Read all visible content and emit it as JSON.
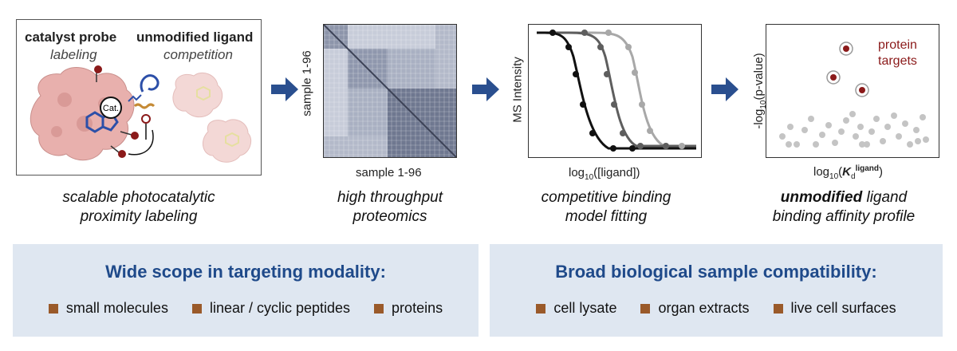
{
  "panel1": {
    "probe_title": "catalyst probe",
    "probe_sub": "labeling",
    "ligand_title": "unmodified ligand",
    "ligand_sub": "competition",
    "cat_label": "Cat.",
    "caption_line1": "scalable photocatalytic",
    "caption_line2": "proximity labeling"
  },
  "panel2": {
    "ylabel": "sample 1-96",
    "xlabel": "sample 1-96",
    "caption_line1": "high throughput",
    "caption_line2": "proteomics"
  },
  "panel3": {
    "ylabel": "MS Intensity",
    "xlabel_pre": "log",
    "xlabel_sub": "10",
    "xlabel_post": "([ligand])",
    "caption_line1": "competitive binding",
    "caption_line2": "model fitting"
  },
  "panel4": {
    "ylabel_pre": "-log",
    "ylabel_sub": "10",
    "ylabel_post": "(p-value)",
    "xlabel_pre": "log",
    "xlabel_sub": "10",
    "xlabel_k": "K",
    "xlabel_ksub": "d",
    "xlabel_ksup": "ligand",
    "annotation_line1": "protein",
    "annotation_line2": "targets",
    "caption_bold": "unmodified",
    "caption_rest": " ligand",
    "caption_line2": "binding affinity profile"
  },
  "bottom_left": {
    "title": "Wide scope in targeting modality:",
    "items": [
      "small molecules",
      "linear / cyclic peptides",
      "proteins"
    ]
  },
  "bottom_right": {
    "title": "Broad biological sample compatibility:",
    "items": [
      "cell lysate",
      "organ extracts",
      "live cell surfaces"
    ]
  },
  "colors": {
    "arrow": "#2a4f8f",
    "title_blue": "#1f4a8a",
    "bullet": "#9a5a2a",
    "target": "#8b1a1a",
    "protein": "#e8b0ad"
  }
}
